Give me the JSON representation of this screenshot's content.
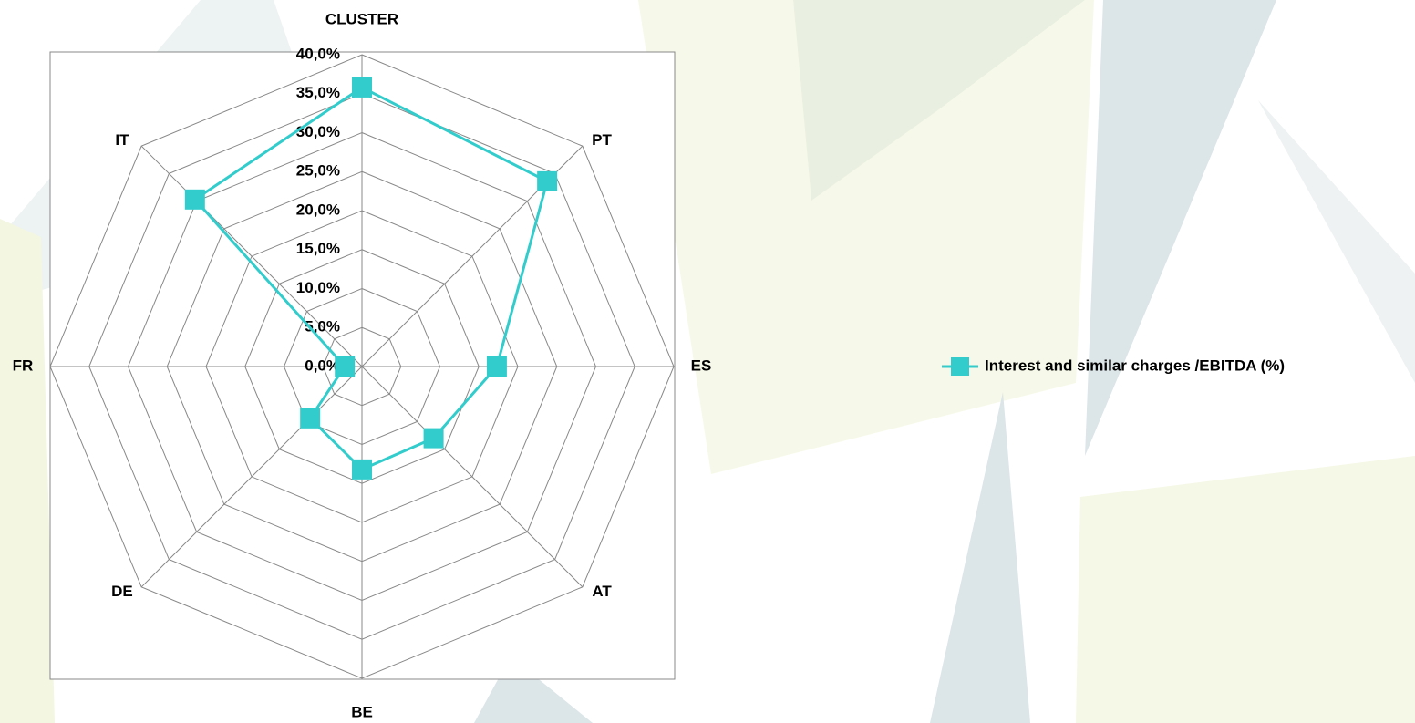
{
  "chart_data": {
    "type": "radar",
    "categories": [
      "CLUSTER",
      "PT",
      "ES",
      "AT",
      "BE",
      "DE",
      "FR",
      "IT"
    ],
    "series": [
      {
        "name": "Interest and similar charges /EBITDA (%)",
        "color": "#33cccc",
        "values": [
          35.8,
          33.6,
          17.3,
          13.0,
          13.2,
          9.4,
          2.2,
          30.3
        ]
      }
    ],
    "ylim": [
      0,
      40
    ],
    "yticks": [
      {
        "value": 0,
        "label": "0,0%"
      },
      {
        "value": 5,
        "label": "5,0%"
      },
      {
        "value": 10,
        "label": "10,0%"
      },
      {
        "value": 15,
        "label": "15,0%"
      },
      {
        "value": 20,
        "label": "20,0%"
      },
      {
        "value": 25,
        "label": "25,0%"
      },
      {
        "value": 30,
        "label": "30,0%"
      },
      {
        "value": 35,
        "label": "35,0%"
      },
      {
        "value": 40,
        "label": "40,0%"
      }
    ],
    "grid": true,
    "legend": "right"
  }
}
